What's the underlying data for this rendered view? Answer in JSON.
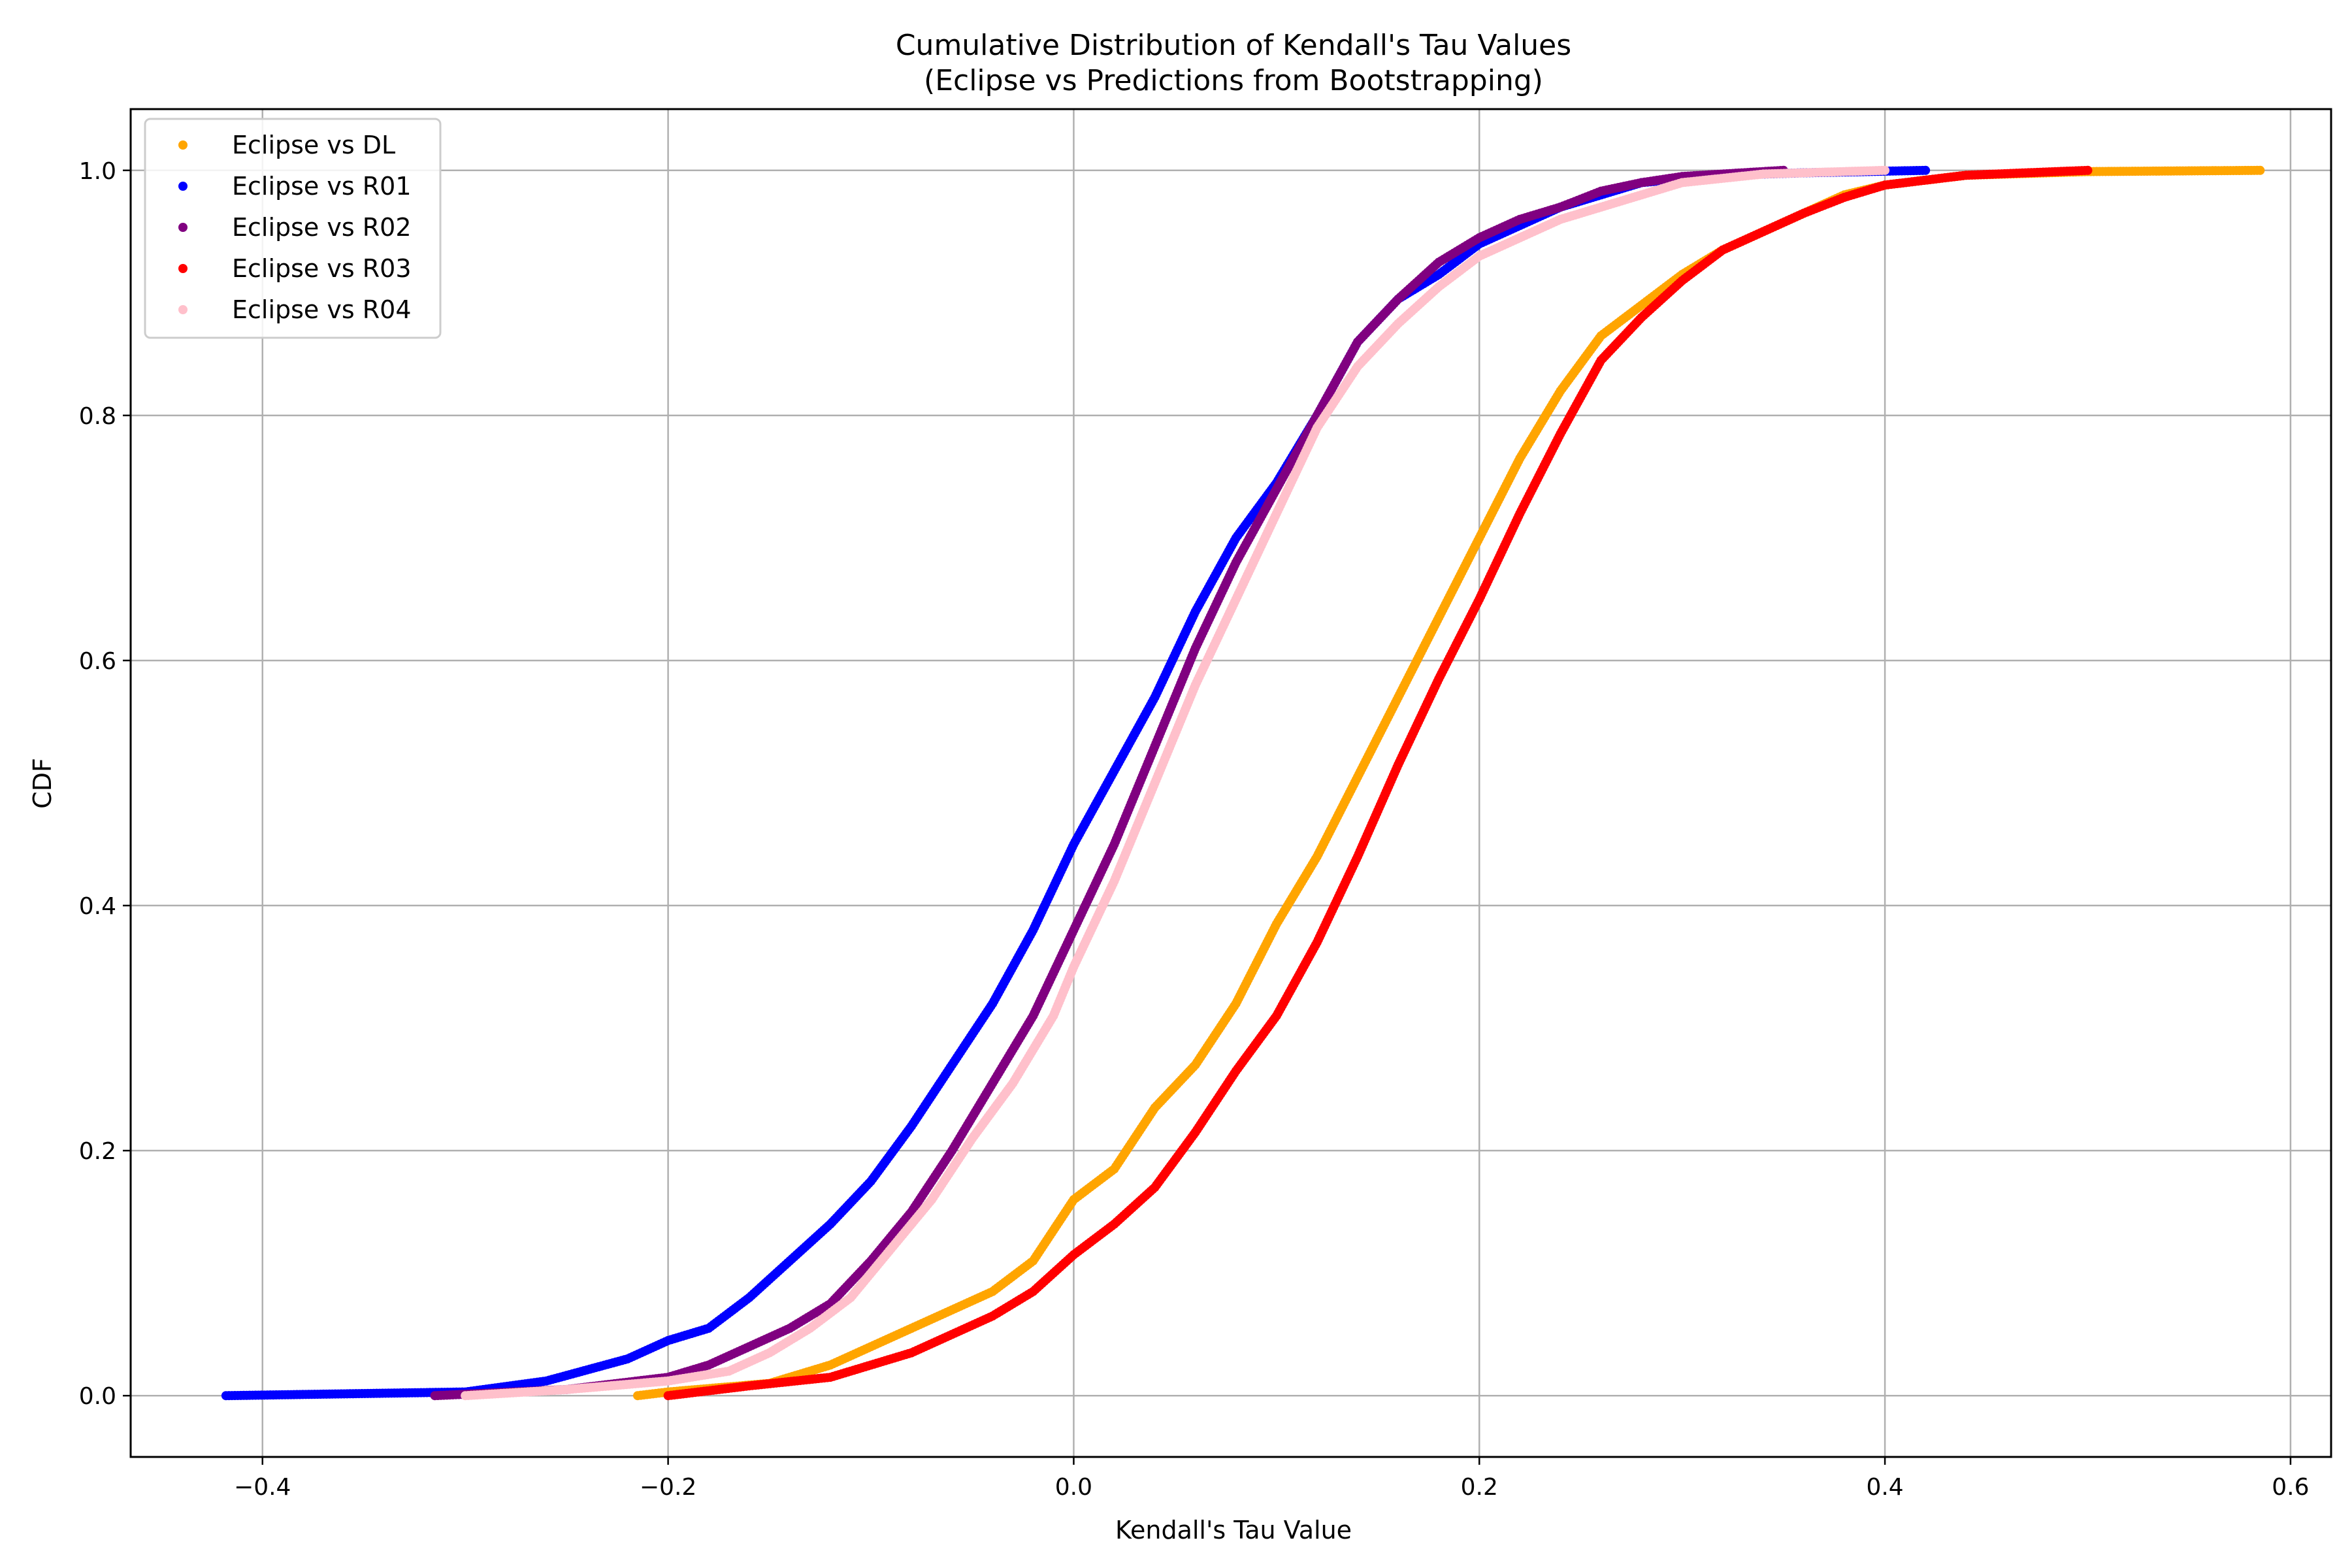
{
  "chart_data": {
    "type": "scatter",
    "title": "Cumulative Distribution of Kendall's Tau Values",
    "subtitle": "(Eclipse vs Predictions from Bootstrapping)",
    "xlabel": "Kendall's Tau Value",
    "ylabel": "CDF",
    "xlim": [
      -0.465,
      0.62
    ],
    "ylim": [
      -0.05,
      1.05
    ],
    "xticks": [
      -0.4,
      -0.2,
      0.0,
      0.2,
      0.4,
      0.6
    ],
    "xtick_labels": [
      "−0.4",
      "−0.2",
      "0.0",
      "0.2",
      "0.4",
      "0.6"
    ],
    "yticks": [
      0.0,
      0.2,
      0.4,
      0.6,
      0.8,
      1.0
    ],
    "ytick_labels": [
      "0.0",
      "0.2",
      "0.4",
      "0.6",
      "0.8",
      "1.0"
    ],
    "grid": true,
    "legend_position": "top-left",
    "series": [
      {
        "name": "Eclipse vs DL",
        "color": "#ffa500",
        "points": [
          [
            -0.215,
            0.0
          ],
          [
            -0.2,
            0.003
          ],
          [
            -0.15,
            0.01
          ],
          [
            -0.12,
            0.025
          ],
          [
            -0.1,
            0.04
          ],
          [
            -0.08,
            0.055
          ],
          [
            -0.06,
            0.07
          ],
          [
            -0.04,
            0.085
          ],
          [
            -0.02,
            0.11
          ],
          [
            0.0,
            0.16
          ],
          [
            0.02,
            0.185
          ],
          [
            0.04,
            0.235
          ],
          [
            0.06,
            0.27
          ],
          [
            0.08,
            0.32
          ],
          [
            0.1,
            0.385
          ],
          [
            0.12,
            0.44
          ],
          [
            0.14,
            0.505
          ],
          [
            0.16,
            0.57
          ],
          [
            0.18,
            0.635
          ],
          [
            0.2,
            0.7
          ],
          [
            0.22,
            0.765
          ],
          [
            0.24,
            0.82
          ],
          [
            0.26,
            0.865
          ],
          [
            0.28,
            0.89
          ],
          [
            0.3,
            0.915
          ],
          [
            0.32,
            0.935
          ],
          [
            0.34,
            0.95
          ],
          [
            0.36,
            0.965
          ],
          [
            0.38,
            0.98
          ],
          [
            0.4,
            0.988
          ],
          [
            0.44,
            0.996
          ],
          [
            0.5,
            0.999
          ],
          [
            0.585,
            1.0
          ]
        ]
      },
      {
        "name": "Eclipse vs R01",
        "color": "#0000ff",
        "points": [
          [
            -0.418,
            0.0
          ],
          [
            -0.3,
            0.003
          ],
          [
            -0.26,
            0.012
          ],
          [
            -0.22,
            0.03
          ],
          [
            -0.2,
            0.045
          ],
          [
            -0.18,
            0.055
          ],
          [
            -0.16,
            0.08
          ],
          [
            -0.14,
            0.11
          ],
          [
            -0.12,
            0.14
          ],
          [
            -0.1,
            0.175
          ],
          [
            -0.08,
            0.22
          ],
          [
            -0.06,
            0.27
          ],
          [
            -0.04,
            0.32
          ],
          [
            -0.02,
            0.38
          ],
          [
            0.0,
            0.45
          ],
          [
            0.02,
            0.51
          ],
          [
            0.04,
            0.57
          ],
          [
            0.06,
            0.64
          ],
          [
            0.08,
            0.7
          ],
          [
            0.1,
            0.745
          ],
          [
            0.12,
            0.8
          ],
          [
            0.14,
            0.86
          ],
          [
            0.16,
            0.895
          ],
          [
            0.18,
            0.915
          ],
          [
            0.2,
            0.94
          ],
          [
            0.22,
            0.955
          ],
          [
            0.24,
            0.97
          ],
          [
            0.26,
            0.98
          ],
          [
            0.28,
            0.99
          ],
          [
            0.32,
            0.996
          ],
          [
            0.36,
            0.998
          ],
          [
            0.42,
            1.0
          ]
        ]
      },
      {
        "name": "Eclipse vs R02",
        "color": "#800080",
        "points": [
          [
            -0.315,
            0.0
          ],
          [
            -0.25,
            0.005
          ],
          [
            -0.2,
            0.015
          ],
          [
            -0.18,
            0.025
          ],
          [
            -0.16,
            0.04
          ],
          [
            -0.14,
            0.055
          ],
          [
            -0.12,
            0.075
          ],
          [
            -0.1,
            0.11
          ],
          [
            -0.08,
            0.15
          ],
          [
            -0.06,
            0.2
          ],
          [
            -0.04,
            0.255
          ],
          [
            -0.02,
            0.31
          ],
          [
            0.0,
            0.38
          ],
          [
            0.02,
            0.45
          ],
          [
            0.04,
            0.53
          ],
          [
            0.06,
            0.61
          ],
          [
            0.08,
            0.68
          ],
          [
            0.1,
            0.74
          ],
          [
            0.12,
            0.8
          ],
          [
            0.14,
            0.86
          ],
          [
            0.16,
            0.895
          ],
          [
            0.18,
            0.925
          ],
          [
            0.2,
            0.945
          ],
          [
            0.22,
            0.96
          ],
          [
            0.24,
            0.97
          ],
          [
            0.26,
            0.983
          ],
          [
            0.28,
            0.99
          ],
          [
            0.3,
            0.995
          ],
          [
            0.35,
            1.0
          ]
        ]
      },
      {
        "name": "Eclipse vs R03",
        "color": "#ff0000",
        "points": [
          [
            -0.2,
            0.0
          ],
          [
            -0.16,
            0.008
          ],
          [
            -0.12,
            0.015
          ],
          [
            -0.08,
            0.035
          ],
          [
            -0.06,
            0.05
          ],
          [
            -0.04,
            0.065
          ],
          [
            -0.02,
            0.085
          ],
          [
            0.0,
            0.115
          ],
          [
            0.02,
            0.14
          ],
          [
            0.04,
            0.17
          ],
          [
            0.06,
            0.215
          ],
          [
            0.08,
            0.265
          ],
          [
            0.1,
            0.31
          ],
          [
            0.12,
            0.37
          ],
          [
            0.14,
            0.44
          ],
          [
            0.16,
            0.515
          ],
          [
            0.18,
            0.585
          ],
          [
            0.2,
            0.65
          ],
          [
            0.22,
            0.72
          ],
          [
            0.24,
            0.785
          ],
          [
            0.26,
            0.845
          ],
          [
            0.28,
            0.88
          ],
          [
            0.3,
            0.91
          ],
          [
            0.32,
            0.935
          ],
          [
            0.34,
            0.95
          ],
          [
            0.36,
            0.965
          ],
          [
            0.38,
            0.978
          ],
          [
            0.4,
            0.988
          ],
          [
            0.44,
            0.996
          ],
          [
            0.5,
            1.0
          ]
        ]
      },
      {
        "name": "Eclipse vs R04",
        "color": "#ffc0cb",
        "points": [
          [
            -0.3,
            0.0
          ],
          [
            -0.25,
            0.005
          ],
          [
            -0.2,
            0.012
          ],
          [
            -0.17,
            0.02
          ],
          [
            -0.15,
            0.035
          ],
          [
            -0.13,
            0.055
          ],
          [
            -0.11,
            0.08
          ],
          [
            -0.09,
            0.12
          ],
          [
            -0.07,
            0.16
          ],
          [
            -0.05,
            0.21
          ],
          [
            -0.03,
            0.255
          ],
          [
            -0.01,
            0.31
          ],
          [
            0.0,
            0.35
          ],
          [
            0.02,
            0.42
          ],
          [
            0.04,
            0.5
          ],
          [
            0.06,
            0.58
          ],
          [
            0.08,
            0.65
          ],
          [
            0.1,
            0.72
          ],
          [
            0.12,
            0.79
          ],
          [
            0.14,
            0.84
          ],
          [
            0.16,
            0.875
          ],
          [
            0.18,
            0.905
          ],
          [
            0.2,
            0.93
          ],
          [
            0.22,
            0.945
          ],
          [
            0.24,
            0.96
          ],
          [
            0.26,
            0.97
          ],
          [
            0.28,
            0.98
          ],
          [
            0.3,
            0.99
          ],
          [
            0.34,
            0.997
          ],
          [
            0.4,
            1.0
          ]
        ]
      }
    ]
  }
}
